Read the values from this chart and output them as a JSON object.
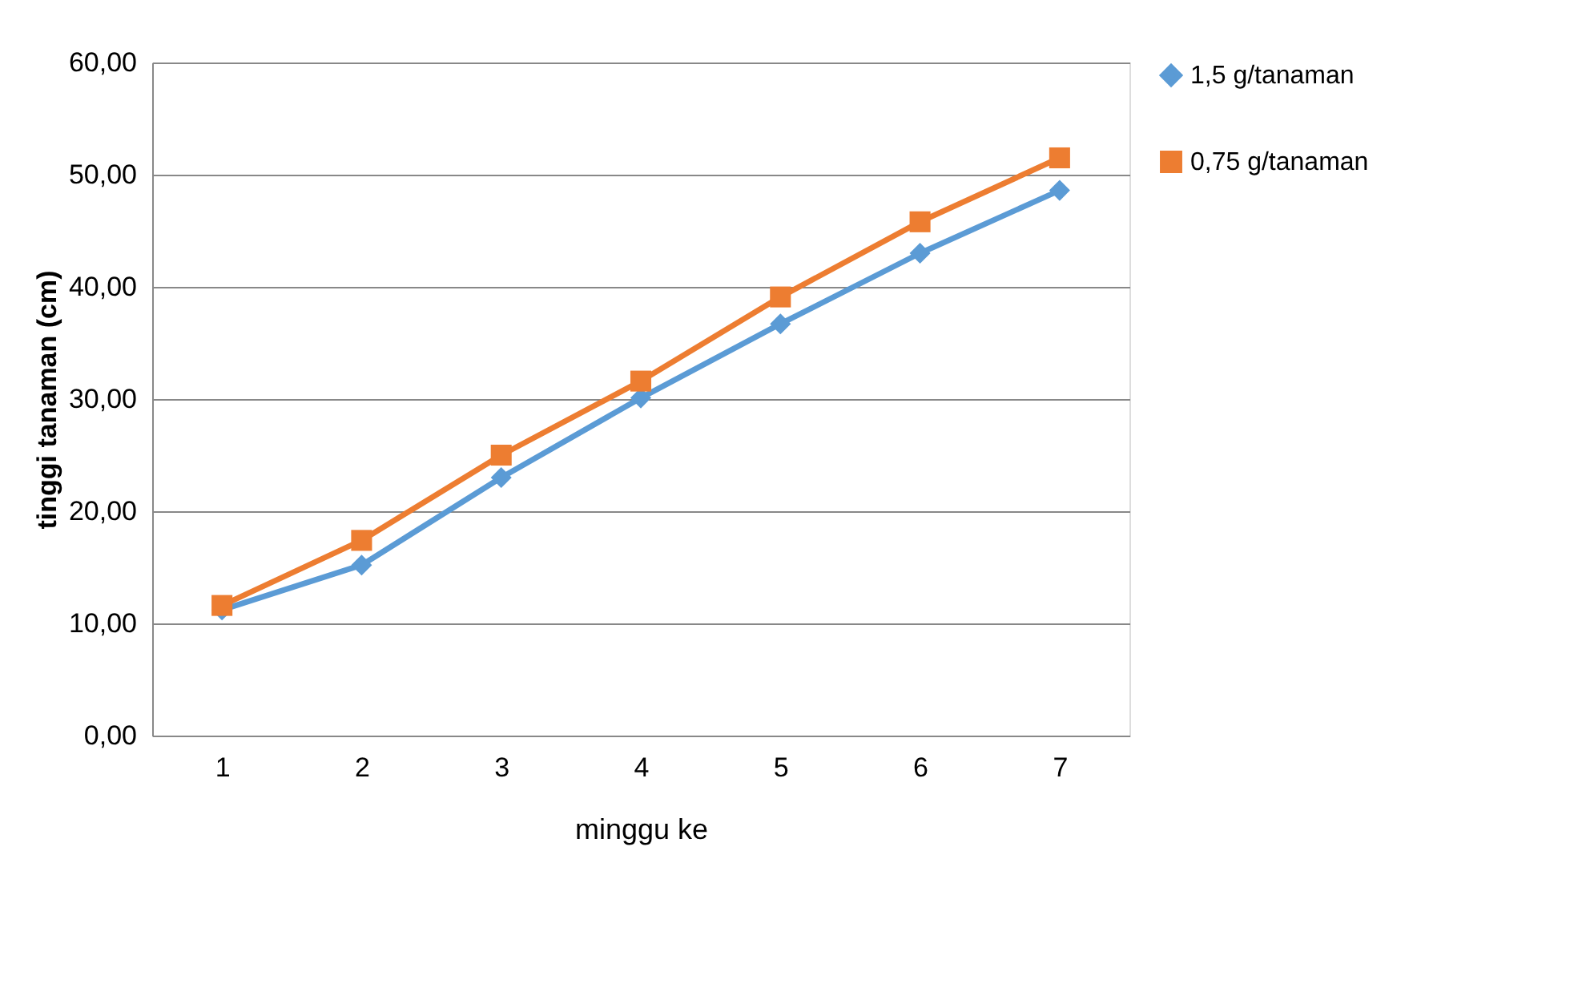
{
  "chart_data": {
    "type": "line",
    "xlabel": "minggu ke",
    "ylabel": "tinggi tanaman (cm)",
    "categories": [
      "1",
      "2",
      "3",
      "4",
      "5",
      "6",
      "7"
    ],
    "series": [
      {
        "name": "1,5 g/tanaman",
        "color": "#5b9bd5",
        "marker": "diamond",
        "values": [
          11.2,
          15.2,
          23.0,
          30.1,
          36.7,
          43.0,
          48.6
        ]
      },
      {
        "name": "0,75 g/tanaman",
        "color": "#ed7d31",
        "marker": "square",
        "values": [
          11.6,
          17.4,
          25.0,
          31.6,
          39.1,
          45.8,
          51.5
        ]
      }
    ],
    "ylim": [
      0,
      60
    ],
    "yticks": [
      {
        "value": 0,
        "label": "0,00"
      },
      {
        "value": 10,
        "label": "10,00"
      },
      {
        "value": 20,
        "label": "20,00"
      },
      {
        "value": 30,
        "label": "30,00"
      },
      {
        "value": 40,
        "label": "40,00"
      },
      {
        "value": 50,
        "label": "50,00"
      },
      {
        "value": 60,
        "label": "60,00"
      }
    ],
    "grid": "y",
    "legend": "right",
    "line_style": "solid"
  }
}
